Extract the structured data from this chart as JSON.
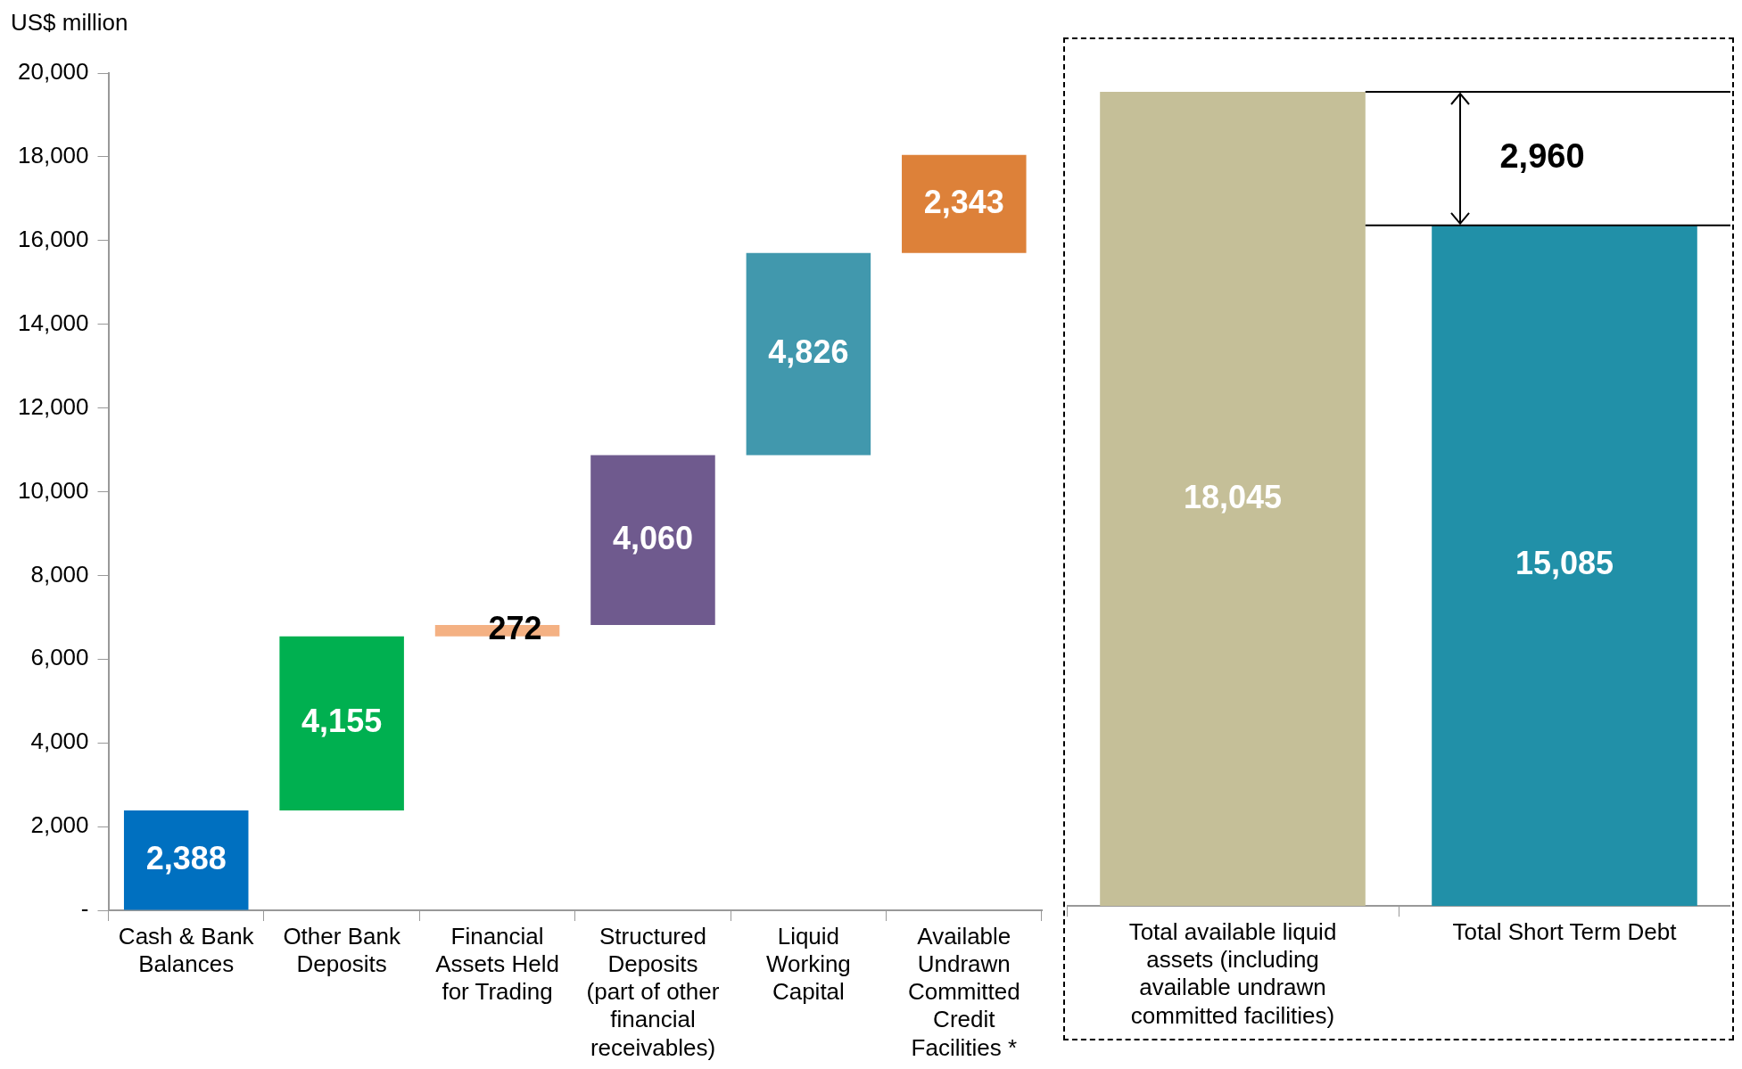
{
  "chart_data": [
    {
      "type": "bar",
      "ylabel": "US$ million",
      "categories": [
        "Cash & Bank Balances",
        "Other Bank Deposits",
        "Financial Assets Held for Trading",
        "Structured Deposits (part of other financial receivables)",
        "Liquid Working Capital",
        "Available Undrawn Committed Credit Facilities *"
      ],
      "values": [
        2388,
        4155,
        272,
        4060,
        4826,
        2343
      ],
      "base": [
        0,
        2388,
        6543,
        6815,
        10875,
        15701
      ],
      "colors": [
        "#0070c0",
        "#00b050",
        "#f4b183",
        "#6f5a8e",
        "#4198ad",
        "#dd8139"
      ],
      "ylim": [
        0,
        20000
      ],
      "yticks": [
        {
          "value": 0,
          "label": "-"
        },
        {
          "value": 2000,
          "label": "2,000"
        },
        {
          "value": 4000,
          "label": "4,000"
        },
        {
          "value": 6000,
          "label": "6,000"
        },
        {
          "value": 8000,
          "label": "8,000"
        },
        {
          "value": 10000,
          "label": "10,000"
        },
        {
          "value": 12000,
          "label": "12,000"
        },
        {
          "value": 14000,
          "label": "14,000"
        },
        {
          "value": 16000,
          "label": "16,000"
        },
        {
          "value": 18000,
          "label": "18,000"
        },
        {
          "value": 20000,
          "label": "20,000"
        }
      ],
      "value_labels": [
        "2,388",
        "4,155",
        "272",
        "4,060",
        "4,826",
        "2,343"
      ],
      "grid": false,
      "legend": false
    },
    {
      "type": "bar",
      "categories": [
        "Total available liquid assets (including available undrawn committed facilities)",
        "Total Short Term Debt"
      ],
      "values": [
        18045,
        15085
      ],
      "colors": [
        "#c5bf98",
        "#2190a8"
      ],
      "ref_lines": [
        {
          "axis": "y",
          "value": 18045
        },
        {
          "axis": "y",
          "value": 15085
        }
      ],
      "annotations": [
        "2,960"
      ],
      "value_labels": [
        "18,045",
        "15,085"
      ],
      "grid": false,
      "legend": false
    }
  ]
}
